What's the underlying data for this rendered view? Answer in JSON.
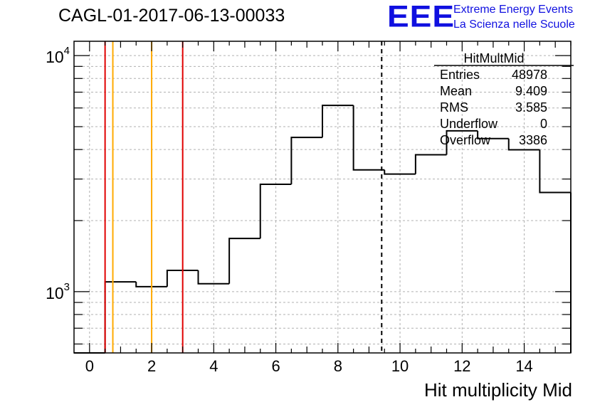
{
  "page": {
    "title": "CAGL-01-2017-06-13-00033",
    "logo": "EEE",
    "logo_line1": "Extreme Energy Events",
    "logo_line2": "La Scienza nelle Scuole"
  },
  "chart_data": {
    "type": "histogram",
    "title": "CAGL-01-2017-06-13-00033",
    "xlabel": "Hit multiplicity Mid",
    "ylabel": "",
    "xlim": [
      -0.5,
      15.5
    ],
    "ylim": [
      550,
      11500
    ],
    "yscale": "log",
    "grid": true,
    "x_ticks": [
      0,
      2,
      4,
      6,
      8,
      10,
      12,
      14
    ],
    "y_ticks": [
      {
        "value": 1000,
        "base": "10",
        "exp": "3"
      },
      {
        "value": 10000,
        "base": "10",
        "exp": "4"
      }
    ],
    "bin_edges": [
      -0.5,
      0.5,
      1.5,
      2.5,
      3.5,
      4.5,
      5.5,
      6.5,
      7.5,
      8.5,
      9.5,
      10.5,
      11.5,
      12.5,
      13.5,
      14.5,
      15.5
    ],
    "values": [
      0,
      1100,
      1050,
      1230,
      1080,
      1680,
      2850,
      4500,
      6150,
      3280,
      3150,
      3800,
      4800,
      4450,
      3990,
      2630
    ],
    "vertical_lines": [
      {
        "x": 0.5,
        "color": "#e00000",
        "style": "solid"
      },
      {
        "x": 0.75,
        "color": "#ffaa00",
        "style": "solid"
      },
      {
        "x": 2.0,
        "color": "#ffaa00",
        "style": "solid"
      },
      {
        "x": 3.0,
        "color": "#e00000",
        "style": "solid"
      },
      {
        "x": 9.409,
        "color": "#000000",
        "style": "dashed"
      }
    ],
    "stats_box": {
      "name": "HitMultMid",
      "rows": [
        {
          "label": "Entries",
          "value": "48978"
        },
        {
          "label": "Mean",
          "value": "9.409"
        },
        {
          "label": "RMS",
          "value": "3.585"
        },
        {
          "label": "Underflow",
          "value": "0"
        },
        {
          "label": "Overflow",
          "value": "3386"
        }
      ]
    }
  }
}
